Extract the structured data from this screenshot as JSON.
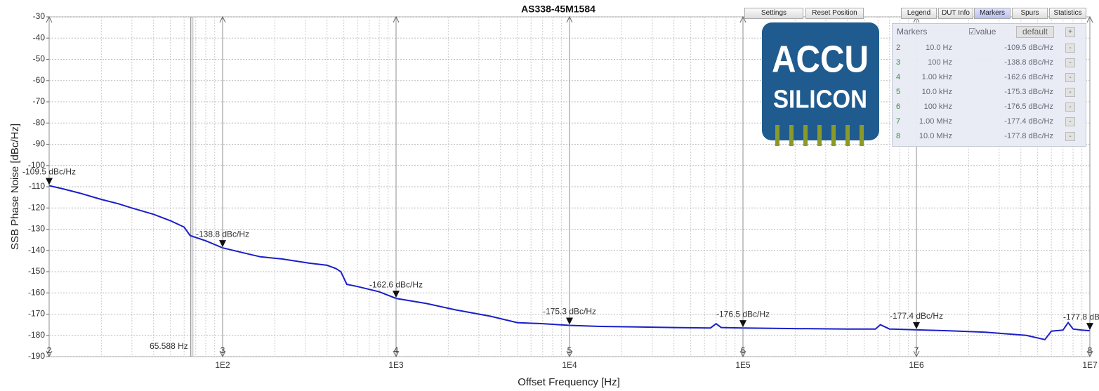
{
  "chart_data": {
    "type": "line",
    "title": "AS338-45M1584",
    "xlabel": "Offset Frequency [Hz]",
    "ylabel": "SSB Phase Noise [dBc/Hz]",
    "xscale": "log",
    "grid": true,
    "color": "#1a1fc8",
    "xlim": [
      10,
      10000000
    ],
    "ylim": [
      -190,
      -30
    ],
    "xticks": [
      {
        "value": 100,
        "label": "1E2"
      },
      {
        "value": 1000,
        "label": "1E3"
      },
      {
        "value": 10000,
        "label": "1E4"
      },
      {
        "value": 100000,
        "label": "1E5"
      },
      {
        "value": 1000000,
        "label": "1E6"
      },
      {
        "value": 10000000,
        "label": "1E7"
      }
    ],
    "yticks": [
      -30,
      -40,
      -50,
      -60,
      -70,
      -80,
      -90,
      -100,
      -110,
      -120,
      -130,
      -140,
      -150,
      -160,
      -170,
      -180,
      -190
    ],
    "x": [
      10,
      12,
      15,
      20,
      25,
      30,
      40,
      50,
      60,
      65,
      80,
      100,
      130,
      165,
      220,
      316,
      400,
      450,
      480,
      500,
      520,
      600,
      800,
      1000,
      1500,
      2200,
      3500,
      5000,
      7000,
      10000,
      15000,
      23000,
      40000,
      65000,
      70000,
      75000,
      100000,
      200000,
      400000,
      580000,
      620000,
      700000,
      1000000,
      1500000,
      2500000,
      4300000,
      5500000,
      6000000,
      7000000,
      7500000,
      8000000,
      9000000,
      10000000
    ],
    "values": [
      -109.5,
      -111,
      -113,
      -116,
      -118,
      -120,
      -123,
      -126,
      -129,
      -133,
      -135.5,
      -138.8,
      -141,
      -143,
      -144,
      -146,
      -147,
      -148.5,
      -150,
      -153,
      -156,
      -157,
      -159.5,
      -162.6,
      -165,
      -168,
      -171,
      -174,
      -174.5,
      -175.3,
      -175.8,
      -176,
      -176.3,
      -176.5,
      -174.5,
      -176.3,
      -176.5,
      -176.8,
      -177,
      -177,
      -175,
      -177,
      -177.4,
      -177.8,
      -178.5,
      -180,
      -182,
      -178,
      -177.5,
      -174,
      -177,
      -177.5,
      -177.8
    ],
    "cursor": {
      "x": 65.588,
      "label": "65.588 Hz"
    },
    "markers": [
      {
        "id": "2",
        "x": 10,
        "x_label": "10.0 Hz",
        "value": -109.5,
        "label": "-109.5 dBc/Hz"
      },
      {
        "id": "3",
        "x": 100,
        "x_label": "100 Hz",
        "value": -138.8,
        "label": "-138.8 dBc/Hz"
      },
      {
        "id": "4",
        "x": 1000,
        "x_label": "1.00 kHz",
        "value": -162.6,
        "label": "-162.6 dBc/Hz"
      },
      {
        "id": "5",
        "x": 10000,
        "x_label": "10.0 kHz",
        "value": -175.3,
        "label": "-175.3 dBc/Hz"
      },
      {
        "id": "6",
        "x": 100000,
        "x_label": "100 kHz",
        "value": -176.5,
        "label": "-176.5 dBc/Hz"
      },
      {
        "id": "7",
        "x": 1000000,
        "x_label": "1.00 MHz",
        "value": -177.4,
        "label": "-177.4 dBc/Hz"
      },
      {
        "id": "8",
        "x": 10000000,
        "x_label": "10.0 MHz",
        "value": -177.8,
        "label": "-177.8 dBc/Hz"
      }
    ]
  },
  "toolbar": {
    "left": [
      "Settings",
      "Reset Position"
    ],
    "right": [
      "Legend",
      "DUT Info",
      "Markers",
      "Spurs",
      "Statistics"
    ]
  },
  "marker_panel": {
    "title": "Markers",
    "value_toggle": "value",
    "default_button": "default",
    "add_button": "+",
    "remove_button": "-"
  },
  "logo": {
    "line1": "ACCU",
    "line2": "SILICON"
  }
}
